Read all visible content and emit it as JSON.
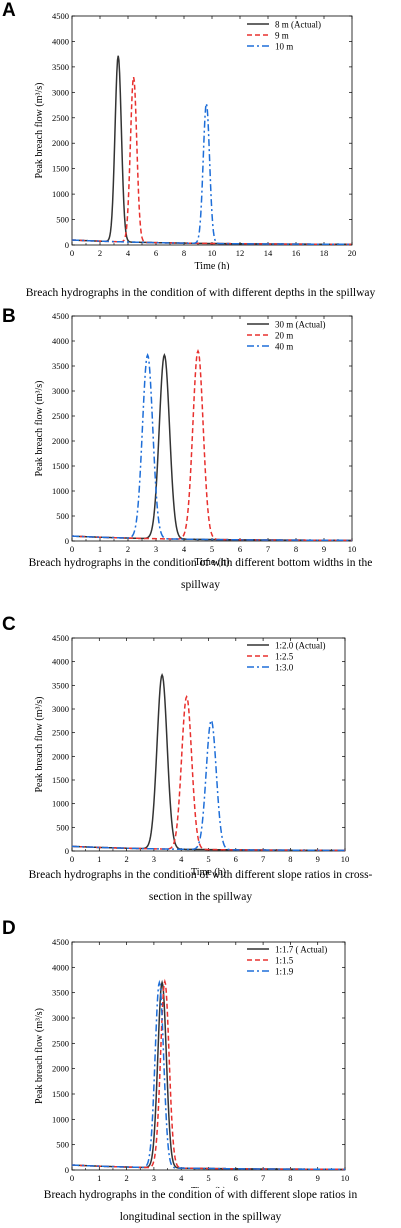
{
  "panels": [
    {
      "letter": "A",
      "caption": "Breach hydrographs in the condition of with different depths in the spillway",
      "chart_data": {
        "type": "line",
        "xlabel": "Time (h)",
        "ylabel": "Peak breach flow (m³/s)",
        "xlim": [
          0,
          20
        ],
        "ylim": [
          0,
          4500
        ],
        "xticks": [
          "0",
          "2",
          "4",
          "6",
          "8",
          "10",
          "12",
          "14",
          "16",
          "18",
          "20"
        ],
        "yticks": [
          "0",
          "500",
          "1000",
          "1500",
          "2000",
          "2500",
          "3000",
          "3500",
          "4000",
          "4500"
        ],
        "legend": "top-right",
        "series": [
          {
            "name": "8 m (Actual)",
            "color": "#333333",
            "style": "solid",
            "peak_x": 3.3,
            "peak_y": 3720,
            "width": 0.32
          },
          {
            "name": "9 m",
            "color": "#e8302e",
            "style": "dash",
            "peak_x": 4.4,
            "peak_y": 3300,
            "width": 0.32
          },
          {
            "name": "10 m",
            "color": "#1e6ed8",
            "style": "dashdot",
            "peak_x": 9.6,
            "peak_y": 2780,
            "width": 0.32
          }
        ]
      }
    },
    {
      "letter": "B",
      "caption": "Breach hydrographs in the condition of with different bottom widths in the spillway",
      "chart_data": {
        "type": "line",
        "xlabel": "Time (h)",
        "ylabel": "Peak breach flow (m³/s)",
        "xlim": [
          0,
          10
        ],
        "ylim": [
          0,
          4500
        ],
        "xticks": [
          "0",
          "1",
          "2",
          "3",
          "4",
          "5",
          "6",
          "7",
          "8",
          "9",
          "10"
        ],
        "yticks": [
          "0",
          "500",
          "1000",
          "1500",
          "2000",
          "2500",
          "3000",
          "3500",
          "4000",
          "4500"
        ],
        "legend": "top-right",
        "series": [
          {
            "name": "30 m (Actual)",
            "color": "#333333",
            "style": "solid",
            "peak_x": 3.3,
            "peak_y": 3720,
            "width": 0.26
          },
          {
            "name": "20 m",
            "color": "#e8302e",
            "style": "dash",
            "peak_x": 4.5,
            "peak_y": 3800,
            "width": 0.26
          },
          {
            "name": "40 m",
            "color": "#1e6ed8",
            "style": "dashdot",
            "peak_x": 2.7,
            "peak_y": 3720,
            "width": 0.26
          }
        ]
      }
    },
    {
      "letter": "C",
      "caption": "Breach hydrographs in the condition of with different slope ratios in cross-section in the spillway",
      "chart_data": {
        "type": "line",
        "xlabel": "Time (h)",
        "ylabel": "Peak breach flow (m³/s)",
        "xlim": [
          0,
          10
        ],
        "ylim": [
          0,
          4500
        ],
        "xticks": [
          "0",
          "1",
          "2",
          "3",
          "4",
          "5",
          "6",
          "7",
          "8",
          "9",
          "10"
        ],
        "yticks": [
          "0",
          "500",
          "1000",
          "1500",
          "2000",
          "2500",
          "3000",
          "3500",
          "4000",
          "4500"
        ],
        "legend": "top-right",
        "series": [
          {
            "name": "1:2.0 (Actual)",
            "color": "#333333",
            "style": "solid",
            "peak_x": 3.3,
            "peak_y": 3720,
            "width": 0.26
          },
          {
            "name": "1:2.5",
            "color": "#e8302e",
            "style": "dash",
            "peak_x": 4.2,
            "peak_y": 3260,
            "width": 0.26
          },
          {
            "name": "1:3.0",
            "color": "#1e6ed8",
            "style": "dashdot",
            "peak_x": 5.1,
            "peak_y": 2760,
            "width": 0.26
          }
        ]
      }
    },
    {
      "letter": "D",
      "caption": "Breach hydrographs in the condition of with different slope ratios in longitudinal section in the spillway",
      "chart_data": {
        "type": "line",
        "xlabel": "Time (h)",
        "ylabel": "Peak breach flow (m³/s)",
        "xlim": [
          0,
          10
        ],
        "ylim": [
          0,
          4500
        ],
        "xticks": [
          "0",
          "1",
          "2",
          "3",
          "4",
          "5",
          "6",
          "7",
          "8",
          "9",
          "10"
        ],
        "yticks": [
          "0",
          "500",
          "1000",
          "1500",
          "2000",
          "2500",
          "3000",
          "3500",
          "4000",
          "4500"
        ],
        "legend": "top-right",
        "series": [
          {
            "name": "1:1.7 ( Actual)",
            "color": "#333333",
            "style": "solid",
            "peak_x": 3.3,
            "peak_y": 3700,
            "width": 0.22
          },
          {
            "name": "1:1.5",
            "color": "#e8302e",
            "style": "dash",
            "peak_x": 3.4,
            "peak_y": 3720,
            "width": 0.22
          },
          {
            "name": "1:1.9",
            "color": "#1e6ed8",
            "style": "dashdot",
            "peak_x": 3.2,
            "peak_y": 3700,
            "width": 0.22
          }
        ]
      }
    }
  ]
}
